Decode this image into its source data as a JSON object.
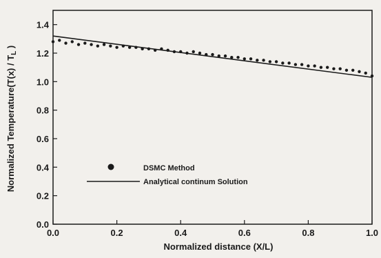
{
  "chart_data": {
    "type": "scatter",
    "xlabel": "Normalized distance (X/L)",
    "ylabel": "Normalized Temperature(T(x) / T",
    "ylabel_sub": "L",
    "ylabel_close": " )",
    "xlim": [
      0.0,
      1.0
    ],
    "ylim": [
      0.0,
      1.5
    ],
    "xticks": [
      "0.0",
      "0.2",
      "0.4",
      "0.6",
      "0.8",
      "1.0"
    ],
    "xtick_values": [
      0.0,
      0.2,
      0.4,
      0.6,
      0.8,
      1.0
    ],
    "yticks": [
      "0.0",
      "0.2",
      "0.4",
      "0.6",
      "0.8",
      "1.0",
      "1.2",
      "1.4"
    ],
    "ytick_values": [
      0.0,
      0.2,
      0.4,
      0.6,
      0.8,
      1.0,
      1.2,
      1.4
    ],
    "grid": false,
    "legend_position": "lower-left",
    "series": [
      {
        "name": "DSMC Method",
        "kind": "scatter",
        "color": "#1a1a1a",
        "x": [
          0.0,
          0.02,
          0.04,
          0.06,
          0.08,
          0.1,
          0.12,
          0.14,
          0.16,
          0.18,
          0.2,
          0.22,
          0.24,
          0.26,
          0.28,
          0.3,
          0.32,
          0.34,
          0.36,
          0.38,
          0.4,
          0.42,
          0.44,
          0.46,
          0.48,
          0.5,
          0.52,
          0.54,
          0.56,
          0.58,
          0.6,
          0.62,
          0.64,
          0.66,
          0.68,
          0.7,
          0.72,
          0.74,
          0.76,
          0.78,
          0.8,
          0.82,
          0.84,
          0.86,
          0.88,
          0.9,
          0.92,
          0.94,
          0.96,
          0.98,
          1.0
        ],
        "y": [
          1.28,
          1.29,
          1.27,
          1.28,
          1.26,
          1.27,
          1.26,
          1.25,
          1.26,
          1.25,
          1.24,
          1.25,
          1.24,
          1.24,
          1.23,
          1.23,
          1.22,
          1.23,
          1.22,
          1.21,
          1.21,
          1.2,
          1.21,
          1.2,
          1.19,
          1.19,
          1.18,
          1.18,
          1.17,
          1.17,
          1.16,
          1.16,
          1.15,
          1.15,
          1.14,
          1.14,
          1.13,
          1.13,
          1.12,
          1.12,
          1.11,
          1.11,
          1.1,
          1.1,
          1.09,
          1.09,
          1.08,
          1.08,
          1.07,
          1.06,
          1.04
        ]
      },
      {
        "name": "Analytical continum Solution",
        "kind": "line",
        "color": "#1a1a1a",
        "x": [
          0.0,
          1.0
        ],
        "y": [
          1.32,
          1.03
        ]
      }
    ]
  }
}
